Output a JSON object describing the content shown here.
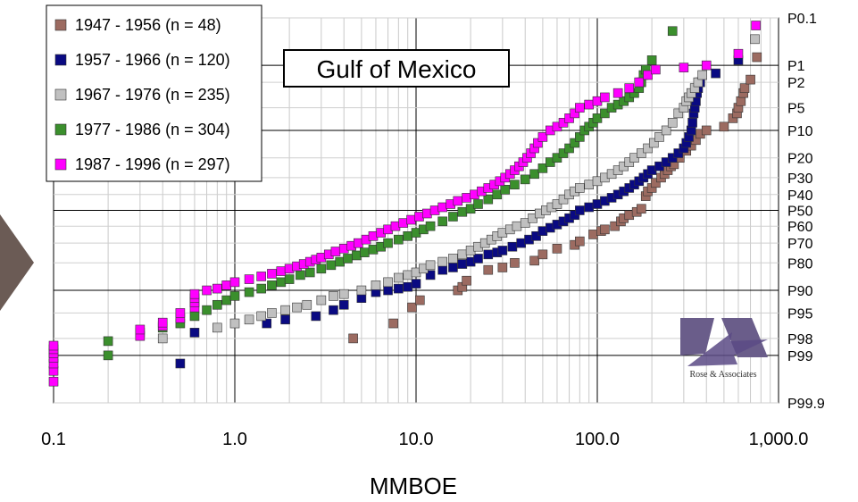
{
  "chart_data": {
    "type": "scatter",
    "title": "Gulf of Mexico",
    "xlabel": "MMBOE",
    "ylabel": "",
    "x_scale": "log",
    "y_scale": "probit",
    "xlim": [
      0.1,
      1000
    ],
    "ylim": [
      "P99.9",
      "P0.1"
    ],
    "x_tick_labels": [
      "0.1",
      "1.0",
      "10.0",
      "100.0",
      "1,000.0"
    ],
    "x_tick_values": [
      0.1,
      1,
      10,
      100,
      1000
    ],
    "y_tick_labels": [
      "P0.1",
      "P1",
      "P2",
      "P5",
      "P10",
      "P20",
      "P30",
      "P40",
      "P50",
      "P60",
      "P70",
      "P80",
      "P90",
      "P95",
      "P98",
      "P99",
      "P99.9"
    ],
    "y_tick_values": [
      0.1,
      1,
      2,
      5,
      10,
      20,
      30,
      40,
      50,
      60,
      70,
      80,
      90,
      95,
      98,
      99,
      99.9
    ],
    "grid": true,
    "legend_position": "top-left",
    "logo_text": "Rose & Associates",
    "series": [
      {
        "name": "1947 - 1956 (n = 48)",
        "color": "#9c6b61",
        "points": [
          [
            4.5,
            98
          ],
          [
            7.5,
            96.5
          ],
          [
            9.5,
            94
          ],
          [
            10.5,
            92.5
          ],
          [
            17,
            90
          ],
          [
            18,
            89
          ],
          [
            19,
            87
          ],
          [
            25,
            83
          ],
          [
            30,
            82
          ],
          [
            35,
            80
          ],
          [
            45,
            79
          ],
          [
            50,
            76
          ],
          [
            60,
            73
          ],
          [
            75,
            71
          ],
          [
            80,
            69
          ],
          [
            95,
            65
          ],
          [
            105,
            63
          ],
          [
            110,
            62
          ],
          [
            125,
            60
          ],
          [
            135,
            57
          ],
          [
            140,
            55
          ],
          [
            150,
            53
          ],
          [
            165,
            51
          ],
          [
            175,
            49
          ],
          [
            185,
            41
          ],
          [
            190,
            38
          ],
          [
            200,
            36
          ],
          [
            210,
            33
          ],
          [
            225,
            30
          ],
          [
            235,
            28
          ],
          [
            245,
            26
          ],
          [
            255,
            24
          ],
          [
            265,
            23
          ],
          [
            285,
            20
          ],
          [
            310,
            17
          ],
          [
            330,
            15
          ],
          [
            350,
            13
          ],
          [
            370,
            11
          ],
          [
            400,
            10
          ],
          [
            500,
            9
          ],
          [
            560,
            7
          ],
          [
            590,
            6
          ],
          [
            600,
            5
          ],
          [
            620,
            4
          ],
          [
            640,
            3
          ],
          [
            650,
            2.5
          ],
          [
            700,
            1.8
          ],
          [
            760,
            0.7
          ]
        ]
      },
      {
        "name": "1957 - 1966 (n = 120)",
        "color": "#0a0a82",
        "points": [
          [
            0.5,
            99.3
          ],
          [
            0.6,
            97.5
          ],
          [
            1.5,
            96.5
          ],
          [
            1.9,
            96
          ],
          [
            2.8,
            95.5
          ],
          [
            3.5,
            94.5
          ],
          [
            4,
            93.5
          ],
          [
            5,
            92
          ],
          [
            6,
            90.5
          ],
          [
            7,
            90
          ],
          [
            8,
            89.5
          ],
          [
            9,
            89
          ],
          [
            10,
            88
          ],
          [
            12,
            85
          ],
          [
            14,
            83
          ],
          [
            16,
            82
          ],
          [
            18,
            80.5
          ],
          [
            20,
            79.5
          ],
          [
            22,
            78
          ],
          [
            25,
            76
          ],
          [
            28,
            75
          ],
          [
            30,
            74
          ],
          [
            34,
            72
          ],
          [
            38,
            70
          ],
          [
            42,
            68
          ],
          [
            46,
            66
          ],
          [
            50,
            63
          ],
          [
            55,
            61
          ],
          [
            60,
            59
          ],
          [
            65,
            57
          ],
          [
            70,
            55
          ],
          [
            75,
            53
          ],
          [
            80,
            50
          ],
          [
            90,
            48
          ],
          [
            100,
            46
          ],
          [
            110,
            44
          ],
          [
            120,
            42
          ],
          [
            130,
            40
          ],
          [
            140,
            38
          ],
          [
            150,
            36
          ],
          [
            160,
            34
          ],
          [
            170,
            32
          ],
          [
            180,
            30
          ],
          [
            190,
            28
          ],
          [
            200,
            26
          ],
          [
            220,
            24
          ],
          [
            240,
            22
          ],
          [
            260,
            20
          ],
          [
            280,
            18
          ],
          [
            300,
            16
          ],
          [
            310,
            14
          ],
          [
            320,
            12
          ],
          [
            330,
            10
          ],
          [
            335,
            8
          ],
          [
            340,
            6
          ],
          [
            345,
            5
          ],
          [
            350,
            4
          ],
          [
            355,
            3
          ],
          [
            360,
            2.5
          ],
          [
            370,
            2
          ],
          [
            450,
            1.4
          ],
          [
            600,
            0.8
          ]
        ]
      },
      {
        "name": "1967 - 1976 (n = 235)",
        "color": "#c0c0c0",
        "points": [
          [
            0.4,
            98
          ],
          [
            0.8,
            97
          ],
          [
            1,
            96.5
          ],
          [
            1.2,
            96
          ],
          [
            1.4,
            95.5
          ],
          [
            1.6,
            95
          ],
          [
            1.9,
            94.5
          ],
          [
            2.2,
            94
          ],
          [
            2.5,
            93.5
          ],
          [
            3,
            92.5
          ],
          [
            3.5,
            91.5
          ],
          [
            4,
            91
          ],
          [
            5,
            90
          ],
          [
            6,
            88.5
          ],
          [
            7,
            87.5
          ],
          [
            8,
            86
          ],
          [
            9,
            85
          ],
          [
            10,
            84
          ],
          [
            11,
            82.5
          ],
          [
            12,
            81
          ],
          [
            14,
            79.5
          ],
          [
            16,
            78
          ],
          [
            18,
            76
          ],
          [
            20,
            74
          ],
          [
            22,
            72
          ],
          [
            24,
            70
          ],
          [
            26,
            68
          ],
          [
            28,
            66
          ],
          [
            30,
            64
          ],
          [
            33,
            62
          ],
          [
            36,
            60
          ],
          [
            40,
            58
          ],
          [
            44,
            55
          ],
          [
            48,
            52
          ],
          [
            52,
            50
          ],
          [
            56,
            48
          ],
          [
            60,
            46
          ],
          [
            65,
            43
          ],
          [
            70,
            40
          ],
          [
            75,
            38
          ],
          [
            80,
            36
          ],
          [
            90,
            34
          ],
          [
            100,
            32
          ],
          [
            110,
            30
          ],
          [
            120,
            28
          ],
          [
            130,
            26
          ],
          [
            140,
            24
          ],
          [
            150,
            22
          ],
          [
            160,
            20
          ],
          [
            175,
            18
          ],
          [
            190,
            16
          ],
          [
            205,
            14
          ],
          [
            220,
            12
          ],
          [
            240,
            10
          ],
          [
            260,
            8
          ],
          [
            280,
            6
          ],
          [
            300,
            5
          ],
          [
            310,
            4
          ],
          [
            320,
            3.5
          ],
          [
            330,
            3
          ],
          [
            345,
            2.5
          ],
          [
            360,
            2
          ],
          [
            380,
            1.5
          ],
          [
            740,
            0.3
          ]
        ]
      },
      {
        "name": "1977 - 1986 (n = 304)",
        "color": "#3b8f2d",
        "points": [
          [
            0.2,
            99
          ],
          [
            0.2,
            98.2
          ],
          [
            0.3,
            97.5
          ],
          [
            0.4,
            97
          ],
          [
            0.5,
            96.5
          ],
          [
            0.6,
            95.5
          ],
          [
            0.7,
            94.5
          ],
          [
            0.8,
            93.5
          ],
          [
            0.9,
            92.5
          ],
          [
            1,
            91.5
          ],
          [
            1.2,
            90.5
          ],
          [
            1.4,
            89.5
          ],
          [
            1.6,
            88.5
          ],
          [
            1.8,
            87.5
          ],
          [
            2,
            86.5
          ],
          [
            2.3,
            85
          ],
          [
            2.6,
            84
          ],
          [
            3,
            82.5
          ],
          [
            3.4,
            81
          ],
          [
            3.8,
            79.5
          ],
          [
            4.2,
            78
          ],
          [
            4.7,
            76.5
          ],
          [
            5.2,
            75
          ],
          [
            5.8,
            73.5
          ],
          [
            6.4,
            72
          ],
          [
            7,
            70
          ],
          [
            8,
            68
          ],
          [
            9,
            66
          ],
          [
            10,
            64
          ],
          [
            11,
            62
          ],
          [
            12,
            60
          ],
          [
            14,
            57
          ],
          [
            16,
            54
          ],
          [
            18,
            51
          ],
          [
            20,
            49
          ],
          [
            22,
            46
          ],
          [
            25,
            43
          ],
          [
            28,
            40
          ],
          [
            31,
            37
          ],
          [
            35,
            34
          ],
          [
            40,
            31
          ],
          [
            45,
            28
          ],
          [
            50,
            25
          ],
          [
            55,
            22
          ],
          [
            60,
            20
          ],
          [
            65,
            18
          ],
          [
            70,
            16
          ],
          [
            75,
            14
          ],
          [
            80,
            12
          ],
          [
            85,
            10
          ],
          [
            90,
            9
          ],
          [
            95,
            8
          ],
          [
            100,
            7
          ],
          [
            110,
            6
          ],
          [
            120,
            5
          ],
          [
            130,
            4.5
          ],
          [
            140,
            4
          ],
          [
            150,
            3.5
          ],
          [
            160,
            3
          ],
          [
            170,
            2.5
          ],
          [
            175,
            2
          ],
          [
            180,
            1.5
          ],
          [
            185,
            1.2
          ],
          [
            200,
            0.8
          ],
          [
            260,
            0.2
          ]
        ]
      },
      {
        "name": "1987 - 1996 (n = 297)",
        "color": "#ff00ff",
        "points": [
          [
            0.1,
            99.7
          ],
          [
            0.1,
            99.5
          ],
          [
            0.1,
            99.3
          ],
          [
            0.1,
            99.1
          ],
          [
            0.1,
            98.9
          ],
          [
            0.1,
            98.7
          ],
          [
            0.1,
            98.5
          ],
          [
            0.3,
            97.8
          ],
          [
            0.3,
            97.2
          ],
          [
            0.4,
            96.8
          ],
          [
            0.4,
            96.4
          ],
          [
            0.5,
            95.8
          ],
          [
            0.5,
            95
          ],
          [
            0.6,
            94
          ],
          [
            0.6,
            93
          ],
          [
            0.6,
            92
          ],
          [
            0.6,
            91
          ],
          [
            0.7,
            90
          ],
          [
            0.8,
            89.5
          ],
          [
            0.9,
            88.5
          ],
          [
            1,
            87.5
          ],
          [
            1.2,
            86.5
          ],
          [
            1.4,
            85.5
          ],
          [
            1.6,
            84.5
          ],
          [
            1.8,
            83.5
          ],
          [
            2,
            82.5
          ],
          [
            2.2,
            81.5
          ],
          [
            2.4,
            80.5
          ],
          [
            2.6,
            79.5
          ],
          [
            2.8,
            78.5
          ],
          [
            3,
            77.5
          ],
          [
            3.3,
            76
          ],
          [
            3.6,
            74.5
          ],
          [
            4,
            73
          ],
          [
            4.4,
            71.5
          ],
          [
            4.8,
            70
          ],
          [
            5.3,
            68
          ],
          [
            5.8,
            66
          ],
          [
            6.4,
            64
          ],
          [
            7,
            62
          ],
          [
            7.7,
            60
          ],
          [
            8.5,
            58
          ],
          [
            9.4,
            56
          ],
          [
            10.4,
            54
          ],
          [
            11.5,
            52
          ],
          [
            12.7,
            50
          ],
          [
            14,
            48
          ],
          [
            15.5,
            46
          ],
          [
            17,
            44
          ],
          [
            19,
            42
          ],
          [
            21,
            40
          ],
          [
            23,
            38
          ],
          [
            25,
            36
          ],
          [
            27,
            34
          ],
          [
            29,
            32
          ],
          [
            31,
            30
          ],
          [
            33,
            28
          ],
          [
            35,
            26
          ],
          [
            37,
            24
          ],
          [
            39,
            22
          ],
          [
            41,
            20
          ],
          [
            43,
            18
          ],
          [
            45,
            16
          ],
          [
            47,
            14
          ],
          [
            50,
            12
          ],
          [
            55,
            10
          ],
          [
            60,
            9
          ],
          [
            65,
            8
          ],
          [
            70,
            7
          ],
          [
            75,
            6
          ],
          [
            80,
            5
          ],
          [
            90,
            4.5
          ],
          [
            100,
            4
          ],
          [
            110,
            3.5
          ],
          [
            130,
            3
          ],
          [
            150,
            2.5
          ],
          [
            170,
            2
          ],
          [
            190,
            1.5
          ],
          [
            210,
            1.2
          ],
          [
            300,
            1.1
          ],
          [
            400,
            1
          ],
          [
            600,
            0.6
          ],
          [
            750,
            0.15
          ]
        ]
      }
    ]
  }
}
